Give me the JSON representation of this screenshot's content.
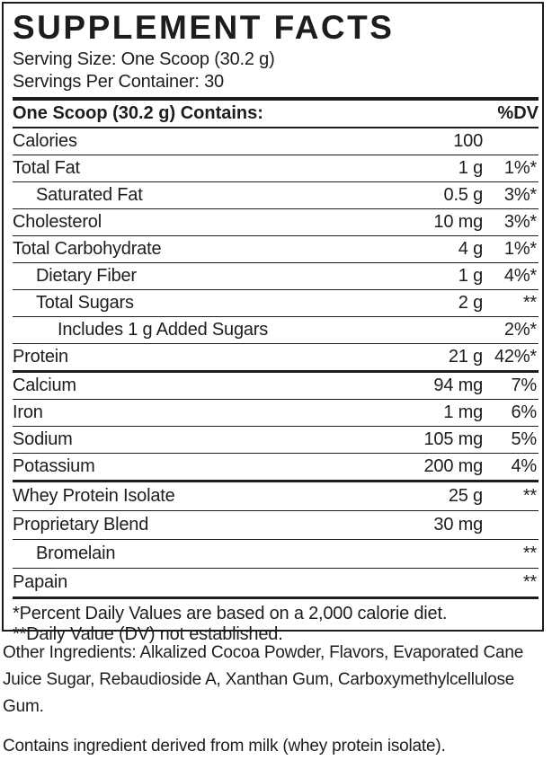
{
  "label": {
    "title": "SUPPLEMENT FACTS",
    "serving_size": "Serving Size: One Scoop (30.2 g)",
    "servings_per_container": "Servings Per Container: 30",
    "header": {
      "contains": "One Scoop (30.2 g) Contains:",
      "dv": "%DV"
    },
    "rows": [
      {
        "name": "Calories",
        "amount": "100",
        "dv": ""
      },
      {
        "name": "Total Fat",
        "amount": "1 g",
        "dv": "1%*"
      },
      {
        "name": "Saturated Fat",
        "amount": "0.5 g",
        "dv": "3%*"
      },
      {
        "name": "Cholesterol",
        "amount": "10 mg",
        "dv": "3%*"
      },
      {
        "name": "Total Carbohydrate",
        "amount": "4 g",
        "dv": "1%*"
      },
      {
        "name": "Dietary Fiber",
        "amount": "1 g",
        "dv": "4%*"
      },
      {
        "name": "Total Sugars",
        "amount": "2 g",
        "dv": "**"
      },
      {
        "name": "Includes 1 g Added Sugars",
        "amount": "",
        "dv": "2%*"
      },
      {
        "name": "Protein",
        "amount": "21 g",
        "dv": "42%*"
      },
      {
        "name": "Calcium",
        "amount": "94 mg",
        "dv": "7%"
      },
      {
        "name": "Iron",
        "amount": "1 mg",
        "dv": "6%"
      },
      {
        "name": "Sodium",
        "amount": "105 mg",
        "dv": "5%"
      },
      {
        "name": "Potassium",
        "amount": "200 mg",
        "dv": "4%"
      },
      {
        "name": "Whey Protein Isolate",
        "amount": "25 g",
        "dv": "**"
      },
      {
        "name": "Proprietary Blend",
        "amount": "30 mg",
        "dv": ""
      },
      {
        "name": "Bromelain",
        "amount": "",
        "dv": "**"
      },
      {
        "name": "Papain",
        "amount": "",
        "dv": "**"
      }
    ],
    "footnotes": {
      "percent_dv": "*Percent Daily Values are based on a 2,000 calorie diet.",
      "dv_not_established": "**Daily Value (DV) not established."
    }
  },
  "other_ingredients": "Other Ingredients: Alkalized Cocoa Powder, Flavors, Evaporated Cane Juice Sugar, Rebaudioside A, Xanthan Gum, Carboxymethylcellulose Gum.",
  "allergen_statement": "Contains ingredient derived from milk (whey protein isolate).",
  "colors": {
    "text": "#1d1d1b",
    "background": "#ffffff",
    "rule": "#1d1d1b"
  }
}
